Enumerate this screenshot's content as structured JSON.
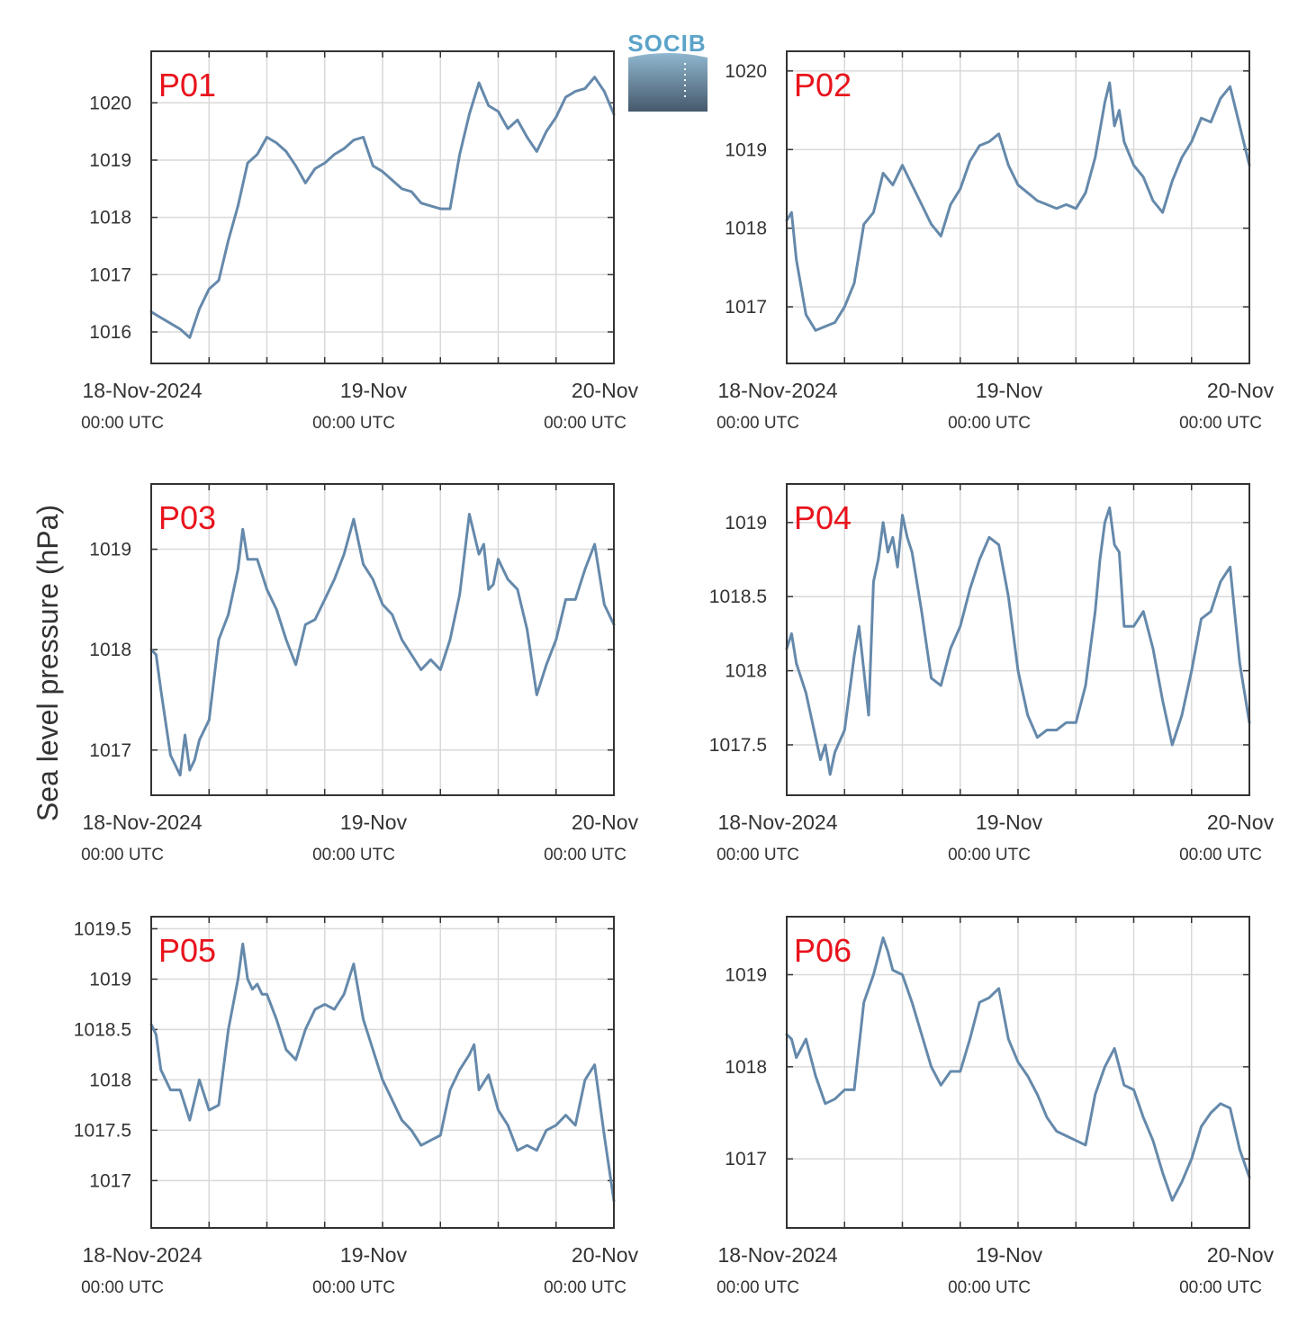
{
  "page": {
    "ylabel": "Sea level pressure (hPa)",
    "logo_text": "SOCIB",
    "xtick_labels": [
      "18-Nov-2024",
      "19-Nov",
      "20-Nov"
    ],
    "xtick_sublabels": [
      "00:00 UTC",
      "00:00 UTC",
      "00:00 UTC"
    ],
    "colors": {
      "line": "#6589ab",
      "title": "#e8131c",
      "grid": "#d9d9d9",
      "axis": "#333333",
      "logo_text": "#5ba3c9",
      "logo_top": "#8fb7cf",
      "logo_bottom": "#46596b"
    }
  },
  "chart_data": [
    {
      "type": "line",
      "title": "P01",
      "ylabel": "Sea level pressure (hPa)",
      "xlim": [
        0,
        48
      ],
      "ylim": [
        1015.45,
        1020.9
      ],
      "yticks": [
        1016,
        1017,
        1018,
        1019,
        1020
      ],
      "ytick_labels": [
        "1016",
        "1017",
        "1018",
        "1019",
        "1020"
      ],
      "grid": true,
      "series": [
        {
          "x": [
            0,
            1,
            2,
            3,
            4,
            5,
            6,
            7,
            8,
            9,
            10,
            11,
            12,
            13,
            14,
            15,
            16,
            17,
            18,
            19,
            20,
            21,
            22,
            23,
            24,
            25,
            26,
            27,
            28,
            29,
            30,
            31,
            32,
            33,
            34,
            35,
            36,
            37,
            38,
            39,
            40,
            41,
            42,
            43,
            44,
            45,
            46,
            47,
            48
          ],
          "y": [
            1016.35,
            1016.25,
            1016.15,
            1016.05,
            1015.9,
            1016.4,
            1016.75,
            1016.9,
            1017.6,
            1018.2,
            1018.95,
            1019.1,
            1019.4,
            1019.3,
            1019.15,
            1018.9,
            1018.6,
            1018.85,
            1018.95,
            1019.1,
            1019.2,
            1019.35,
            1019.4,
            1018.9,
            1018.8,
            1018.65,
            1018.5,
            1018.45,
            1018.25,
            1018.2,
            1018.15,
            1018.15,
            1019.1,
            1019.8,
            1020.35,
            1019.95,
            1019.85,
            1019.55,
            1019.7,
            1019.4,
            1019.15,
            1019.5,
            1019.75,
            1020.1,
            1020.2,
            1020.25,
            1020.45,
            1020.2,
            1019.8
          ]
        }
      ]
    },
    {
      "type": "line",
      "title": "P02",
      "ylabel": "Sea level pressure (hPa)",
      "xlim": [
        0,
        48
      ],
      "ylim": [
        1016.28,
        1020.25
      ],
      "yticks": [
        1017,
        1018,
        1019,
        1020
      ],
      "ytick_labels": [
        "1017",
        "1018",
        "1019",
        "1020"
      ],
      "grid": true,
      "series": [
        {
          "x": [
            0,
            0.5,
            1,
            2,
            3,
            4,
            5,
            6,
            7,
            8,
            9,
            10,
            11,
            12,
            13,
            14,
            15,
            16,
            17,
            18,
            19,
            20,
            21,
            22,
            23,
            24,
            25,
            26,
            27,
            28,
            29,
            30,
            31,
            32,
            33,
            33.5,
            34,
            34.5,
            35,
            36,
            37,
            38,
            39,
            40,
            41,
            42,
            43,
            44,
            45,
            46,
            47,
            48
          ],
          "y": [
            1018.1,
            1018.2,
            1017.6,
            1016.9,
            1016.7,
            1016.75,
            1016.8,
            1017.0,
            1017.3,
            1018.05,
            1018.2,
            1018.7,
            1018.55,
            1018.8,
            1018.55,
            1018.3,
            1018.05,
            1017.9,
            1018.3,
            1018.5,
            1018.85,
            1019.05,
            1019.1,
            1019.2,
            1018.8,
            1018.55,
            1018.45,
            1018.35,
            1018.3,
            1018.25,
            1018.3,
            1018.25,
            1018.45,
            1018.9,
            1019.6,
            1019.85,
            1019.3,
            1019.5,
            1019.1,
            1018.8,
            1018.65,
            1018.35,
            1018.2,
            1018.6,
            1018.9,
            1019.1,
            1019.4,
            1019.35,
            1019.65,
            1019.8,
            1019.3,
            1018.8
          ]
        }
      ]
    },
    {
      "type": "line",
      "title": "P03",
      "ylabel": "Sea level pressure (hPa)",
      "xlim": [
        0,
        48
      ],
      "ylim": [
        1016.55,
        1019.65
      ],
      "yticks": [
        1017,
        1018,
        1019
      ],
      "ytick_labels": [
        "1017",
        "1018",
        "1019"
      ],
      "grid": true,
      "series": [
        {
          "x": [
            0,
            0.5,
            1,
            2,
            3,
            3.5,
            4,
            4.5,
            5,
            6,
            7,
            8,
            9,
            9.5,
            10,
            11,
            12,
            13,
            14,
            15,
            16,
            17,
            18,
            19,
            20,
            21,
            22,
            23,
            24,
            25,
            26,
            27,
            28,
            29,
            30,
            31,
            32,
            33,
            34,
            34.5,
            35,
            35.5,
            36,
            37,
            38,
            39,
            40,
            41,
            42,
            43,
            44,
            45,
            46,
            47,
            48
          ],
          "y": [
            1018.0,
            1017.95,
            1017.6,
            1016.95,
            1016.75,
            1017.15,
            1016.8,
            1016.9,
            1017.1,
            1017.3,
            1018.1,
            1018.35,
            1018.8,
            1019.2,
            1018.9,
            1018.9,
            1018.6,
            1018.4,
            1018.1,
            1017.85,
            1018.25,
            1018.3,
            1018.5,
            1018.7,
            1018.95,
            1019.3,
            1018.85,
            1018.7,
            1018.45,
            1018.35,
            1018.1,
            1017.95,
            1017.8,
            1017.9,
            1017.8,
            1018.1,
            1018.55,
            1019.35,
            1018.95,
            1019.05,
            1018.6,
            1018.65,
            1018.9,
            1018.7,
            1018.6,
            1018.2,
            1017.55,
            1017.85,
            1018.1,
            1018.5,
            1018.5,
            1018.8,
            1019.05,
            1018.45,
            1018.25
          ]
        }
      ]
    },
    {
      "type": "line",
      "title": "P04",
      "ylabel": "Sea level pressure (hPa)",
      "xlim": [
        0,
        48
      ],
      "ylim": [
        1017.16,
        1019.26
      ],
      "yticks": [
        1017.5,
        1018,
        1018.5,
        1019
      ],
      "ytick_labels": [
        "1017.5",
        "1018",
        "1018.5",
        "1019"
      ],
      "grid": true,
      "series": [
        {
          "x": [
            0,
            0.5,
            1,
            2,
            3,
            3.5,
            4,
            4.5,
            5,
            6,
            7,
            7.5,
            8,
            8.5,
            9,
            9.5,
            10,
            10.5,
            11,
            11.5,
            12,
            12.5,
            13,
            14,
            15,
            16,
            17,
            18,
            19,
            20,
            21,
            22,
            23,
            24,
            25,
            26,
            27,
            28,
            29,
            30,
            31,
            32,
            32.5,
            33,
            33.5,
            34,
            34.5,
            35,
            36,
            37,
            38,
            39,
            40,
            41,
            42,
            43,
            44,
            45,
            46,
            47,
            48
          ],
          "y": [
            1018.15,
            1018.25,
            1018.05,
            1017.85,
            1017.55,
            1017.4,
            1017.5,
            1017.3,
            1017.45,
            1017.6,
            1018.1,
            1018.3,
            1018.0,
            1017.7,
            1018.6,
            1018.75,
            1019.0,
            1018.8,
            1018.9,
            1018.7,
            1019.05,
            1018.9,
            1018.8,
            1018.4,
            1017.95,
            1017.9,
            1018.15,
            1018.3,
            1018.55,
            1018.75,
            1018.9,
            1018.85,
            1018.5,
            1018.0,
            1017.7,
            1017.55,
            1017.6,
            1017.6,
            1017.65,
            1017.65,
            1017.9,
            1018.4,
            1018.75,
            1019.0,
            1019.1,
            1018.85,
            1018.8,
            1018.3,
            1018.3,
            1018.4,
            1018.15,
            1017.8,
            1017.5,
            1017.7,
            1018.0,
            1018.35,
            1018.4,
            1018.6,
            1018.7,
            1018.05,
            1017.65
          ]
        }
      ]
    },
    {
      "type": "line",
      "title": "P05",
      "ylabel": "Sea level pressure (hPa)",
      "xlim": [
        0,
        48
      ],
      "ylim": [
        1016.53,
        1019.62
      ],
      "yticks": [
        1017,
        1017.5,
        1018,
        1018.5,
        1019,
        1019.5
      ],
      "ytick_labels": [
        "1017",
        "1017.5",
        "1018",
        "1018.5",
        "1019",
        "1019.5"
      ],
      "grid": true,
      "series": [
        {
          "x": [
            0,
            0.5,
            1,
            2,
            3,
            4,
            5,
            6,
            7,
            8,
            9,
            9.5,
            10,
            10.5,
            11,
            11.5,
            12,
            13,
            14,
            15,
            16,
            17,
            18,
            19,
            20,
            21,
            22,
            23,
            24,
            25,
            26,
            27,
            28,
            29,
            30,
            31,
            32,
            33,
            33.5,
            34,
            35,
            36,
            37,
            38,
            39,
            40,
            41,
            42,
            43,
            44,
            45,
            46,
            47,
            48
          ],
          "y": [
            1018.55,
            1018.45,
            1018.1,
            1017.9,
            1017.9,
            1017.6,
            1018.0,
            1017.7,
            1017.75,
            1018.5,
            1019.0,
            1019.35,
            1019.0,
            1018.9,
            1018.95,
            1018.85,
            1018.85,
            1018.6,
            1018.3,
            1018.2,
            1018.5,
            1018.7,
            1018.75,
            1018.7,
            1018.85,
            1019.15,
            1018.6,
            1018.3,
            1018.0,
            1017.8,
            1017.6,
            1017.5,
            1017.35,
            1017.4,
            1017.45,
            1017.9,
            1018.1,
            1018.25,
            1018.35,
            1017.9,
            1018.05,
            1017.7,
            1017.55,
            1017.3,
            1017.35,
            1017.3,
            1017.5,
            1017.55,
            1017.65,
            1017.55,
            1018.0,
            1018.15,
            1017.45,
            1016.8
          ]
        }
      ]
    },
    {
      "type": "line",
      "title": "P06",
      "ylabel": "Sea level pressure (hPa)",
      "xlim": [
        0,
        48
      ],
      "ylim": [
        1016.25,
        1019.63
      ],
      "yticks": [
        1017,
        1018,
        1019
      ],
      "ytick_labels": [
        "1017",
        "1018",
        "1019"
      ],
      "grid": true,
      "series": [
        {
          "x": [
            0,
            0.5,
            1,
            2,
            3,
            4,
            5,
            6,
            7,
            8,
            9,
            10,
            10.5,
            11,
            12,
            13,
            14,
            15,
            16,
            17,
            18,
            19,
            20,
            21,
            22,
            23,
            24,
            25,
            26,
            27,
            28,
            29,
            30,
            31,
            32,
            33,
            34,
            35,
            36,
            37,
            38,
            39,
            40,
            41,
            42,
            43,
            44,
            45,
            46,
            47,
            48
          ],
          "y": [
            1018.35,
            1018.3,
            1018.1,
            1018.3,
            1017.9,
            1017.6,
            1017.65,
            1017.75,
            1017.75,
            1018.7,
            1019.0,
            1019.4,
            1019.25,
            1019.05,
            1019.0,
            1018.7,
            1018.35,
            1018.0,
            1017.8,
            1017.95,
            1017.95,
            1018.3,
            1018.7,
            1018.75,
            1018.85,
            1018.3,
            1018.05,
            1017.9,
            1017.7,
            1017.45,
            1017.3,
            1017.25,
            1017.2,
            1017.15,
            1017.7,
            1018.0,
            1018.2,
            1017.8,
            1017.75,
            1017.45,
            1017.2,
            1016.85,
            1016.55,
            1016.75,
            1017.0,
            1017.35,
            1017.5,
            1017.6,
            1017.55,
            1017.1,
            1016.8
          ]
        }
      ]
    }
  ]
}
